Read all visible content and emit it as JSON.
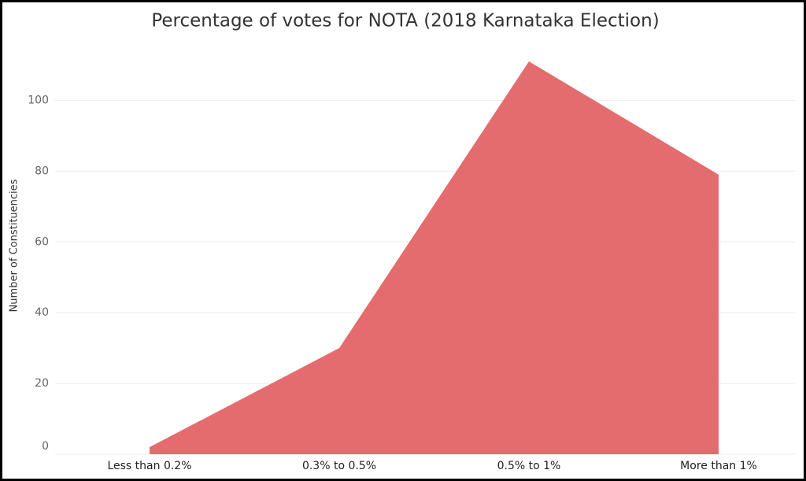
{
  "chart_data": {
    "type": "area",
    "title": "Percentage of votes for NOTA (2018 Karnataka Election)",
    "y_label": "Number of Constituencies",
    "categories": [
      "Less than 0.2%",
      "0.3% to 0.5%",
      "0.5% to 1%",
      "More than 1%"
    ],
    "values": [
      2,
      30,
      111,
      79
    ],
    "color": "#e46c6e",
    "ylim": [
      0,
      115
    ],
    "yticks": [
      0,
      20,
      40,
      60,
      80,
      100
    ],
    "grid": true
  }
}
